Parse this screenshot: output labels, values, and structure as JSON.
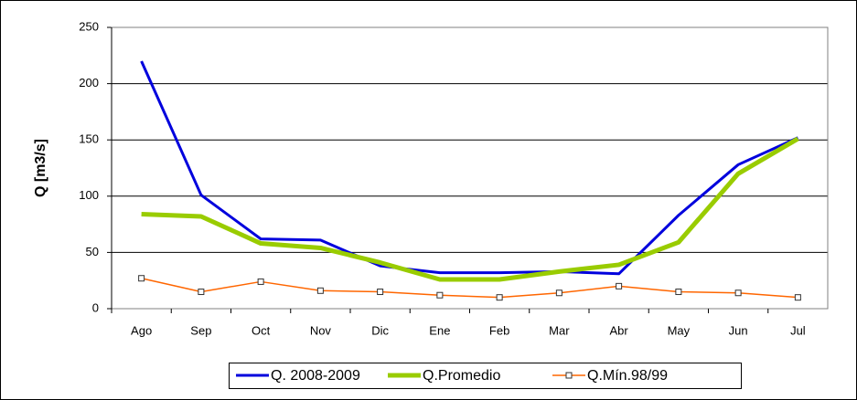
{
  "chart_data": {
    "type": "line",
    "y_label": "Q [m3/s]",
    "categories": [
      "Ago",
      "Sep",
      "Oct",
      "Nov",
      "Dic",
      "Ene",
      "Feb",
      "Mar",
      "Abr",
      "May",
      "Jun",
      "Jul"
    ],
    "series": [
      {
        "name": "Q. 2008-2009",
        "color": "#0000dd",
        "values": [
          220,
          101,
          62,
          61,
          38,
          32,
          32,
          33,
          31,
          83,
          128,
          152
        ]
      },
      {
        "name": "Q.Promedio",
        "color": "#99cc00",
        "values": [
          84,
          82,
          58,
          54,
          41,
          26,
          26,
          33,
          39,
          59,
          120,
          151
        ]
      },
      {
        "name": "Q.Mín.98/99",
        "color": "#ff6600",
        "marker": "square",
        "values": [
          27,
          15,
          24,
          16,
          15,
          12,
          10,
          14,
          20,
          15,
          14,
          10
        ]
      }
    ],
    "ylim": [
      0,
      250
    ],
    "yticks": [
      0,
      50,
      100,
      150,
      200,
      250
    ],
    "grid": true,
    "legend": "bottom"
  }
}
